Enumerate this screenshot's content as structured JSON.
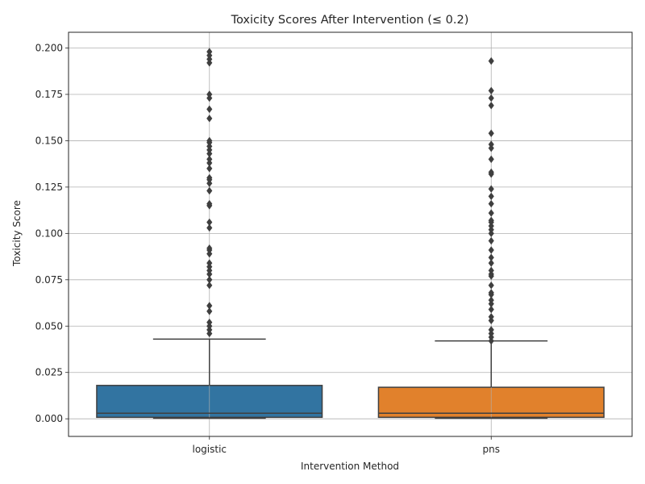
{
  "chart_data": {
    "type": "box",
    "title": "Toxicity Scores After Intervention (≤ 0.2)",
    "xlabel": "Intervention Method",
    "ylabel": "Toxicity Score",
    "categories": [
      "logistic",
      "pns"
    ],
    "ylim": [
      -0.0095,
      0.2085
    ],
    "yticks": [
      0.0,
      0.025,
      0.05,
      0.075,
      0.1,
      0.125,
      0.15,
      0.175,
      0.2
    ],
    "ytick_labels": [
      "0.000",
      "0.025",
      "0.050",
      "0.075",
      "0.100",
      "0.125",
      "0.150",
      "0.175",
      "0.200"
    ],
    "grid": true,
    "colors": {
      "logistic": "#3274a1",
      "pns": "#e1812c",
      "edge": "#3f3f3f",
      "grid": "#b0b0b0"
    },
    "series": [
      {
        "category": "logistic",
        "min": 0.0003,
        "q1": 0.0008,
        "median": 0.003,
        "q3": 0.018,
        "max": 0.043,
        "outliers": [
          0.046,
          0.048,
          0.05,
          0.052,
          0.058,
          0.061,
          0.072,
          0.075,
          0.078,
          0.08,
          0.082,
          0.084,
          0.089,
          0.091,
          0.092,
          0.103,
          0.106,
          0.115,
          0.116,
          0.123,
          0.127,
          0.129,
          0.13,
          0.135,
          0.138,
          0.14,
          0.143,
          0.145,
          0.147,
          0.149,
          0.15,
          0.162,
          0.167,
          0.173,
          0.175,
          0.192,
          0.194,
          0.196,
          0.198
        ]
      },
      {
        "category": "pns",
        "min": 0.0003,
        "q1": 0.0008,
        "median": 0.003,
        "q3": 0.017,
        "max": 0.042,
        "outliers": [
          0.042,
          0.044,
          0.046,
          0.048,
          0.053,
          0.055,
          0.059,
          0.062,
          0.064,
          0.067,
          0.068,
          0.072,
          0.077,
          0.078,
          0.08,
          0.084,
          0.087,
          0.091,
          0.096,
          0.1,
          0.102,
          0.104,
          0.106,
          0.107,
          0.111,
          0.116,
          0.12,
          0.124,
          0.132,
          0.133,
          0.14,
          0.146,
          0.148,
          0.154,
          0.169,
          0.173,
          0.177,
          0.193
        ]
      }
    ]
  }
}
